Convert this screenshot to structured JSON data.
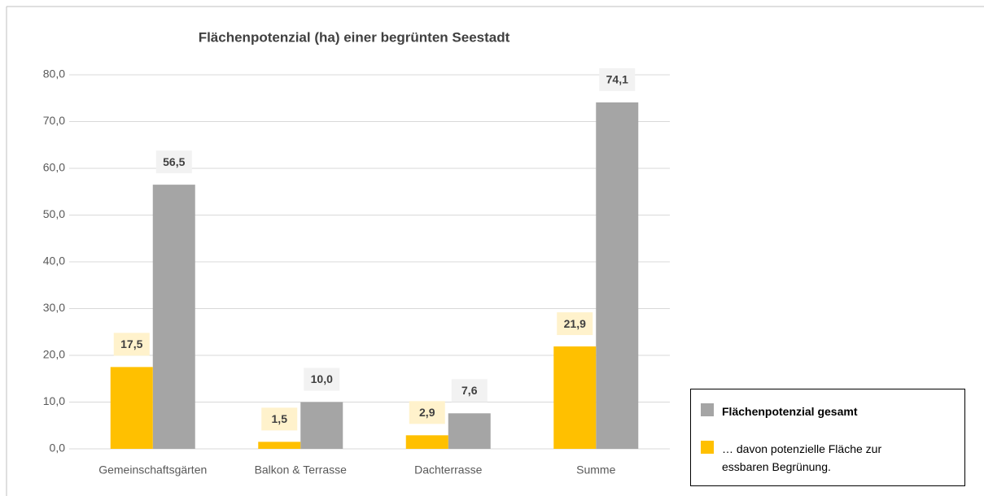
{
  "chart_data": {
    "type": "bar",
    "title": "Flächenpotenzial (ha) einer begrünten Seestadt",
    "categories": [
      "Gemeinschaftsgärten",
      "Balkon & Terrasse",
      "Dachterrasse",
      "Summe"
    ],
    "series": [
      {
        "name": "Flächenpotenzial gesamt",
        "color": "#a5a5a5",
        "values": [
          56.5,
          10.0,
          7.6,
          74.1
        ],
        "value_labels": [
          "56,5",
          "10,0",
          "7,6",
          "74,1"
        ]
      },
      {
        "name": "… davon potenzielle Fläche zur essbaren Begrünung.",
        "color": "#ffc000",
        "values": [
          17.5,
          1.5,
          2.9,
          21.9
        ],
        "value_labels": [
          "17,5",
          "1,5",
          "2,9",
          "21,9"
        ]
      }
    ],
    "ylim": [
      0,
      80
    ],
    "yticks": [
      {
        "value": 0,
        "label": "0,0"
      },
      {
        "value": 10,
        "label": "10,0"
      },
      {
        "value": 20,
        "label": "20,0"
      },
      {
        "value": 30,
        "label": "30,0"
      },
      {
        "value": 40,
        "label": "40,0"
      },
      {
        "value": 50,
        "label": "50,0"
      },
      {
        "value": 60,
        "label": "60,0"
      },
      {
        "value": 70,
        "label": "70,0"
      },
      {
        "value": 80,
        "label": "80,0"
      }
    ],
    "grid": true,
    "legend": "bottom-right"
  }
}
